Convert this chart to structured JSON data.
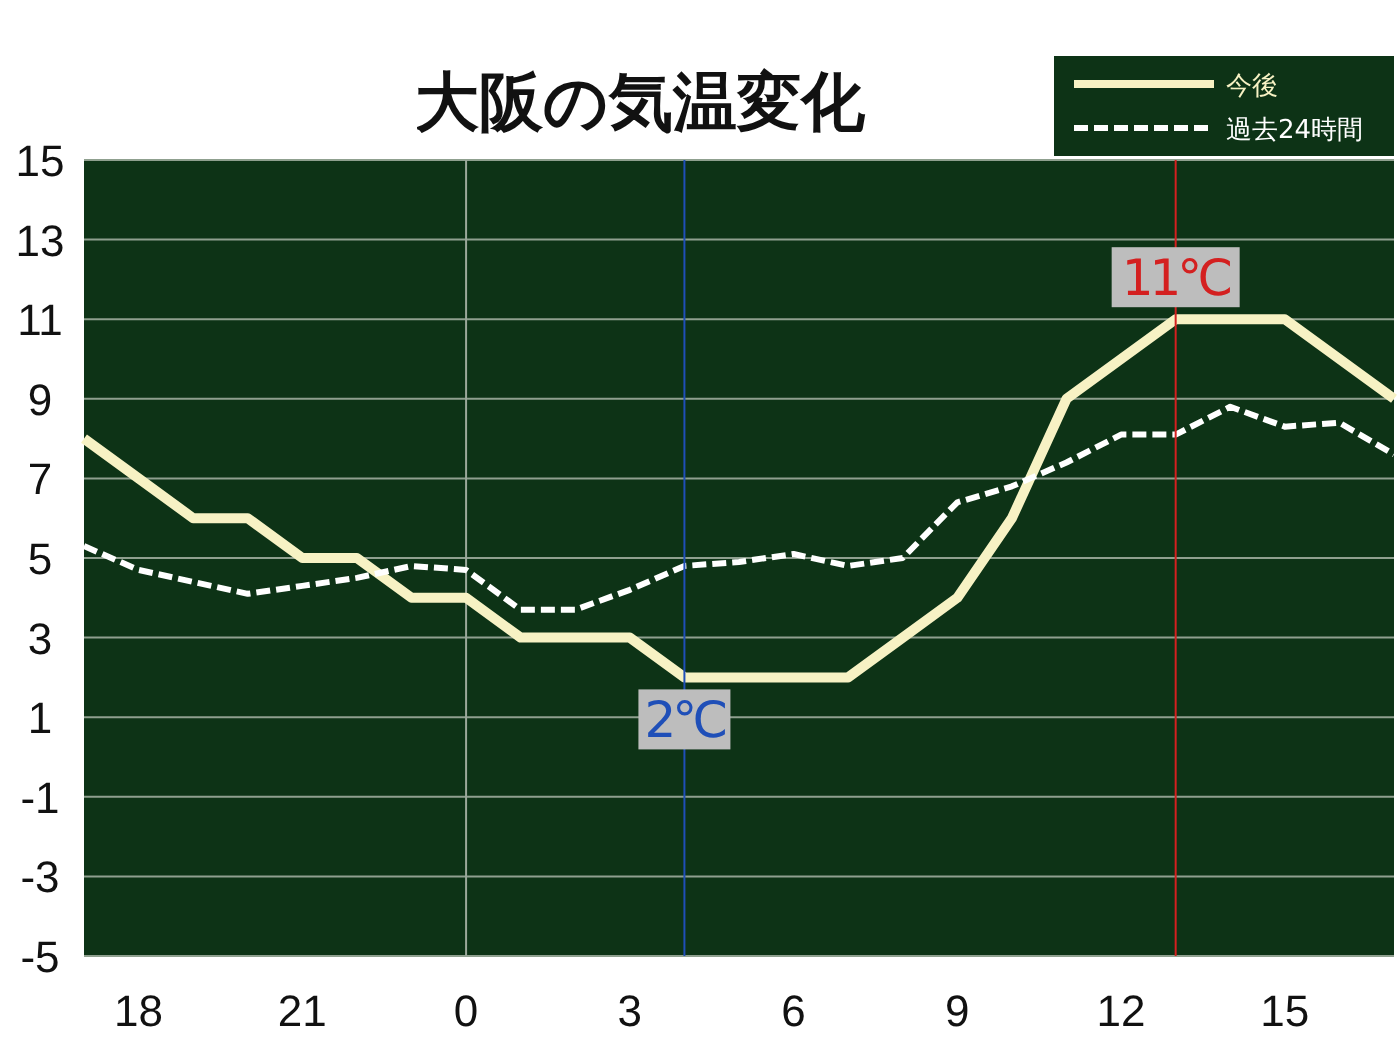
{
  "chart_data": {
    "type": "line",
    "title": "大阪の気温変化",
    "categories": [
      null,
      "18",
      null,
      null,
      "21",
      null,
      null,
      "0",
      null,
      null,
      "3",
      null,
      null,
      "6",
      null,
      null,
      "9",
      null,
      null,
      "12",
      null,
      null,
      "15",
      null,
      null
    ],
    "series": [
      {
        "name": "今後",
        "color": "#f7f2c4",
        "line_style": "solid",
        "values": [
          8,
          7,
          6,
          6,
          5,
          5,
          4,
          4,
          3,
          3,
          3,
          2,
          2,
          2,
          2,
          3,
          4,
          6,
          9,
          10,
          11,
          11,
          11,
          10,
          9
        ]
      },
      {
        "name": "過去24時間",
        "color": "#ffffff",
        "line_style": "dashed",
        "values": [
          5.3,
          4.7,
          4.4,
          4.1,
          4.3,
          4.5,
          4.8,
          4.7,
          3.7,
          3.7,
          4.2,
          4.8,
          4.9,
          5.1,
          4.8,
          5.0,
          6.4,
          6.8,
          7.4,
          8.1,
          8.1,
          8.8,
          8.3,
          8.4,
          7.6
        ]
      }
    ],
    "ylim": [
      -5,
      15
    ],
    "yticks": [
      -5,
      -3,
      -1,
      1,
      3,
      5,
      7,
      9,
      11,
      13,
      15
    ],
    "grid": "y",
    "legend": "top right",
    "marker": "none",
    "ref_lines": [
      {
        "axis": "x",
        "value": "0",
        "color": "#9aa89a"
      }
    ],
    "annotations": [
      {
        "text": "2℃",
        "y": 2
      },
      {
        "text": "11℃",
        "y": 11
      }
    ]
  }
}
